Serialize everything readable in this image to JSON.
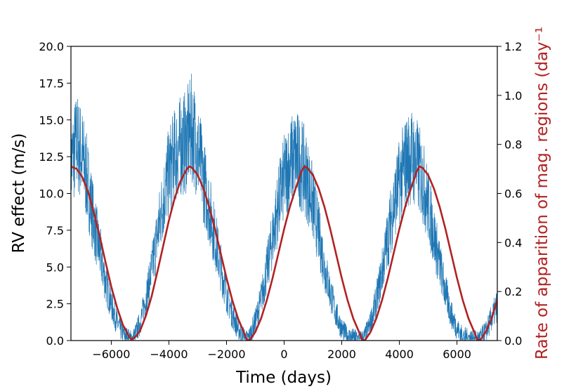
{
  "chart_data": {
    "type": "line",
    "xlabel": "Time (days)",
    "ylabel": "RV effect (m/s)",
    "y2label": "Rate of apparition of mag. regions (day⁻¹",
    "xlim": [
      -7400,
      7400
    ],
    "ylim": [
      0,
      20
    ],
    "y2lim": [
      0,
      1.2
    ],
    "x_ticks": [
      -6000,
      -4000,
      -2000,
      0,
      2000,
      4000,
      6000
    ],
    "x_tick_labels": [
      "−6000",
      "−4000",
      "−2000",
      "0",
      "2000",
      "4000",
      "6000"
    ],
    "y_ticks": [
      0,
      2.5,
      5,
      7.5,
      10,
      12.5,
      15,
      17.5,
      20
    ],
    "y_tick_labels": [
      "0.0",
      "2.5",
      "5.0",
      "7.5",
      "10.0",
      "12.5",
      "15.0",
      "17.5",
      "20.0"
    ],
    "y2_ticks": [
      0,
      0.2,
      0.4,
      0.6,
      0.8,
      1.0,
      1.2
    ],
    "y2_tick_labels": [
      "0.0",
      "0.2",
      "0.4",
      "0.6",
      "0.8",
      "1.0",
      "1.2"
    ],
    "grid": false,
    "legend": "none",
    "colors": {
      "noisy_series": "#1f77b4",
      "model_curve": "#b22222",
      "y2_axis_label": "#b22222"
    },
    "series": [
      {
        "axis": "left",
        "style": "thin noisy line",
        "x": [
          -7400,
          -7200,
          -7000,
          -6800,
          -6600,
          -6400,
          -6200,
          -6000,
          -5800,
          -5600,
          -5400,
          -5300,
          -5200,
          -5000,
          -4800,
          -4600,
          -4400,
          -4200,
          -4000,
          -3800,
          -3600,
          -3400,
          -3200,
          -3000,
          -2800,
          -2600,
          -2400,
          -2200,
          -2000,
          -1800,
          -1600,
          -1400,
          -1300,
          -1200,
          -1000,
          -800,
          -600,
          -400,
          -200,
          0,
          200,
          400,
          600,
          800,
          1000,
          1200,
          1400,
          1600,
          1800,
          2000,
          2200,
          2400,
          2600,
          2700,
          2800,
          3000,
          3200,
          3400,
          3600,
          3800,
          4000,
          4200,
          4400,
          4600,
          4800,
          5000,
          5200,
          5400,
          5600,
          5800,
          6000,
          6200,
          6400,
          6600,
          6700,
          6800,
          7000,
          7200,
          7400
        ],
        "y": [
          12.0,
          13.5,
          12.5,
          10.5,
          8.0,
          6.0,
          4.0,
          2.5,
          1.2,
          0.5,
          0.2,
          0.1,
          0.3,
          1.2,
          2.8,
          4.8,
          7.2,
          9.5,
          11.5,
          12.5,
          13.2,
          13.5,
          14.5,
          13.0,
          11.0,
          9.0,
          7.0,
          5.0,
          3.2,
          1.8,
          0.8,
          0.3,
          0.1,
          0.3,
          1.3,
          2.8,
          4.8,
          7.0,
          9.3,
          11.0,
          12.0,
          12.5,
          12.0,
          11.0,
          9.3,
          7.3,
          5.0,
          3.3,
          1.8,
          0.8,
          0.3,
          0.2,
          0.1,
          0.1,
          0.3,
          1.2,
          2.7,
          4.7,
          7.0,
          9.2,
          10.8,
          12.0,
          12.6,
          12.0,
          11.0,
          9.2,
          7.2,
          5.2,
          3.3,
          1.8,
          0.8,
          0.3,
          0.2,
          0.1,
          0.1,
          0.2,
          0.6,
          1.5,
          2.4
        ]
      },
      {
        "axis": "right",
        "style": "smooth line",
        "x": [
          -7400,
          -7200,
          -7000,
          -6800,
          -6600,
          -6400,
          -6200,
          -6000,
          -5800,
          -5600,
          -5400,
          -5300,
          -5200,
          -5000,
          -4800,
          -4600,
          -4400,
          -4200,
          -4000,
          -3800,
          -3600,
          -3400,
          -3300,
          -3200,
          -3000,
          -2800,
          -2600,
          -2400,
          -2200,
          -2000,
          -1800,
          -1600,
          -1400,
          -1300,
          -1200,
          -1000,
          -800,
          -600,
          -400,
          -200,
          0,
          200,
          400,
          600,
          700,
          800,
          1000,
          1200,
          1400,
          1600,
          1800,
          2000,
          2200,
          2400,
          2600,
          2700,
          2800,
          3000,
          3200,
          3400,
          3600,
          3800,
          4000,
          4200,
          4400,
          4600,
          4700,
          4800,
          5000,
          5200,
          5400,
          5600,
          5800,
          6000,
          6200,
          6400,
          6600,
          6700,
          6800,
          7000,
          7200,
          7400
        ],
        "y": [
          0.71,
          0.7,
          0.665,
          0.605,
          0.52,
          0.425,
          0.32,
          0.22,
          0.135,
          0.065,
          0.02,
          0.005,
          0.01,
          0.04,
          0.1,
          0.18,
          0.28,
          0.385,
          0.49,
          0.58,
          0.65,
          0.695,
          0.71,
          0.705,
          0.675,
          0.62,
          0.545,
          0.455,
          0.355,
          0.255,
          0.165,
          0.09,
          0.035,
          0.005,
          0.0,
          0.035,
          0.09,
          0.165,
          0.255,
          0.355,
          0.455,
          0.545,
          0.62,
          0.69,
          0.71,
          0.705,
          0.675,
          0.62,
          0.545,
          0.455,
          0.355,
          0.255,
          0.165,
          0.09,
          0.035,
          0.005,
          0.0,
          0.035,
          0.09,
          0.165,
          0.255,
          0.355,
          0.455,
          0.545,
          0.62,
          0.69,
          0.71,
          0.705,
          0.675,
          0.62,
          0.545,
          0.455,
          0.355,
          0.255,
          0.165,
          0.09,
          0.035,
          0.005,
          0.0,
          0.035,
          0.09,
          0.165
        ]
      }
    ]
  }
}
